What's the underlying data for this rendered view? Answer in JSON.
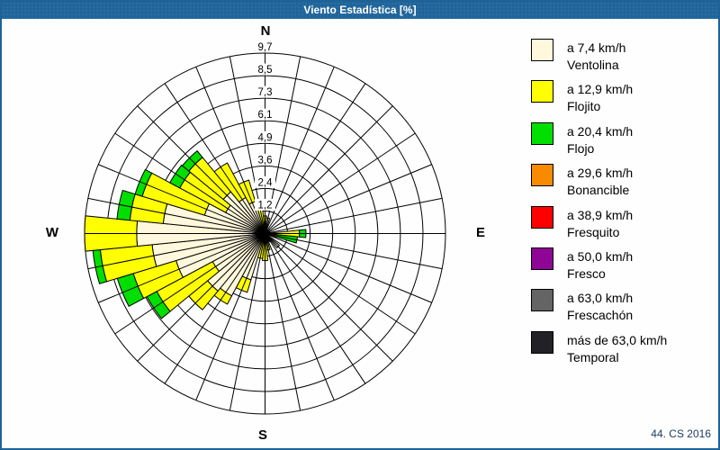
{
  "window": {
    "title": "Viento Estadística [%]",
    "credit": "44. CS 2016",
    "title_bar_color": "#206499",
    "border_color": "#1E6398"
  },
  "compass": {
    "n": "N",
    "e": "E",
    "s": "S",
    "w": "W"
  },
  "legend": [
    {
      "color": "#FFF8DC",
      "line1": "a 7,4 km/h",
      "line2": "Ventolina"
    },
    {
      "color": "#FFFF00",
      "line1": "a 12,9 km/h",
      "line2": "Flojito"
    },
    {
      "color": "#00DF00",
      "line1": "a 20,4 km/h",
      "line2": "Flojo"
    },
    {
      "color": "#F88A00",
      "line1": "a 29,6 km/h",
      "line2": "Bonancible"
    },
    {
      "color": "#FF0000",
      "line1": "a 38,9 km/h",
      "line2": "Fresquito"
    },
    {
      "color": "#8F0596",
      "line1": "a 50,0 km/h",
      "line2": "Fresco"
    },
    {
      "color": "#646464",
      "line1": "a 63,0 km/h",
      "line2": "Frescachón"
    },
    {
      "color": "#222126",
      "line1": "más de 63,0 km/h",
      "line2": "Temporal"
    }
  ],
  "chart_data": {
    "type": "bar",
    "subtype": "windrose-polar-stacked",
    "units": "%",
    "title": "Viento Estadística [%]",
    "max_value": 9.7,
    "n_sectors": 32,
    "grid": {
      "rings": 8,
      "spokes": 32,
      "line_color": "#000000"
    },
    "ring_labels": [
      "1,2",
      "2,4",
      "3,6",
      "4,9",
      "6,1",
      "7,3",
      "8,5",
      "9,7"
    ],
    "ring_values": [
      1.2,
      2.4,
      3.6,
      4.9,
      6.1,
      7.3,
      8.5,
      9.7
    ],
    "directions": [
      "N",
      "NbE",
      "NNE",
      "NEbN",
      "NE",
      "NEbE",
      "ENE",
      "EbN",
      "E",
      "EbS",
      "ESE",
      "SEbE",
      "SE",
      "SEbS",
      "SSE",
      "SbE",
      "S",
      "SbW",
      "SSW",
      "SWbS",
      "SW",
      "SWbW",
      "WSW",
      "WbS",
      "W",
      "WbN",
      "WNW",
      "NWbW",
      "NW",
      "NWbN",
      "NNW",
      "NbW"
    ],
    "series": [
      {
        "name": "Ventolina (a 7,4 km/h)",
        "color": "#FFF8DC",
        "values": [
          0.25,
          0.85,
          0.2,
          0.15,
          0.2,
          0.1,
          0.15,
          0.25,
          0.3,
          0.2,
          0.2,
          0.15,
          1.0,
          0.5,
          0.3,
          0.3,
          0.3,
          0.45,
          2.6,
          3.8,
          4.0,
          3.2,
          5.0,
          6.1,
          6.9,
          5.5,
          3.4,
          2.4,
          2.9,
          2.2,
          1.8,
          0.3
        ]
      },
      {
        "name": "Flojito (a 12,9 km/h)",
        "color": "#FFFF00",
        "values": [
          0.7,
          0,
          0,
          0,
          0,
          0,
          0,
          0,
          1.55,
          0.4,
          0,
          0,
          0,
          0,
          0,
          0.6,
          1.15,
          0.9,
          0.7,
          0.5,
          1.3,
          3.4,
          2.4,
          2.8,
          2.8,
          1.8,
          3.5,
          2.8,
          2.4,
          2.1,
          1.2,
          1.25
        ]
      },
      {
        "name": "Flojo (a 20,4 km/h)",
        "color": "#00DF00",
        "values": [
          0,
          0,
          0,
          0,
          0,
          0,
          0,
          0,
          0.35,
          1.15,
          0,
          0,
          0,
          0,
          0,
          0,
          0,
          0,
          0,
          0,
          0,
          0.6,
          0.9,
          0.4,
          0,
          0.7,
          0.4,
          0.6,
          0.45,
          0,
          0,
          0
        ]
      },
      {
        "name": "Bonancible (a 29,6 km/h)",
        "color": "#F88A00",
        "values": [
          0,
          0,
          0,
          0,
          0,
          0,
          0,
          0,
          0,
          0,
          0,
          0,
          0,
          0,
          0,
          0,
          0,
          0,
          0,
          0,
          0,
          0,
          0,
          0,
          0,
          0,
          0,
          0,
          0,
          0,
          0,
          0
        ]
      },
      {
        "name": "Fresquito (a 38,9 km/h)",
        "color": "#FF0000",
        "values": [
          0,
          0,
          0,
          0,
          0,
          0,
          0,
          0,
          0,
          0,
          0,
          0,
          0,
          0,
          0,
          0,
          0,
          0,
          0,
          0,
          0,
          0,
          0,
          0,
          0,
          0,
          0,
          0,
          0,
          0,
          0,
          0
        ]
      },
      {
        "name": "Fresco (a 50,0 km/h)",
        "color": "#8F0596",
        "values": [
          0,
          0,
          0,
          0,
          0,
          0,
          0,
          0,
          0,
          0,
          0,
          0,
          0,
          0,
          0,
          0,
          0,
          0,
          0,
          0,
          0,
          0,
          0,
          0,
          0,
          0,
          0,
          0,
          0,
          0,
          0,
          0
        ]
      },
      {
        "name": "Frescachón (a 63,0 km/h)",
        "color": "#646464",
        "values": [
          0,
          0,
          0,
          0,
          0,
          0,
          0,
          0,
          0,
          0,
          0,
          0,
          0,
          0,
          0,
          0,
          0,
          0,
          0,
          0,
          0,
          0,
          0,
          0,
          0,
          0,
          0,
          0,
          0,
          0,
          0,
          0
        ]
      },
      {
        "name": "Temporal (más de 63,0 km/h)",
        "color": "#222126",
        "values": [
          0,
          0,
          0,
          0,
          0,
          0,
          0,
          0,
          0,
          0,
          0,
          0,
          0,
          0,
          0,
          0,
          0,
          0,
          0,
          0,
          0,
          0,
          0,
          0,
          0,
          0,
          0,
          0,
          0,
          0,
          0,
          0
        ]
      }
    ]
  }
}
